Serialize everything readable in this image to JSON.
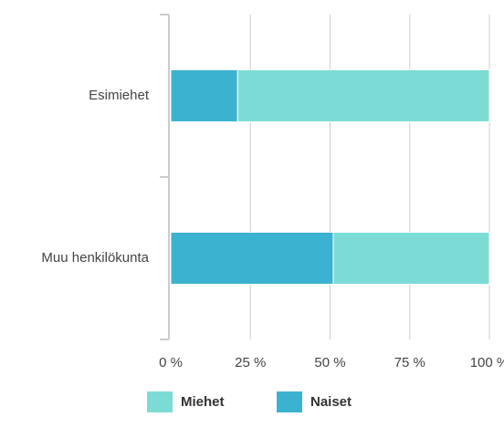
{
  "chart_data": {
    "type": "bar",
    "orientation": "horizontal",
    "stacked": true,
    "categories": [
      "Esimiehet",
      "Muu henkilökunta"
    ],
    "series": [
      {
        "name": "Miehet",
        "color": "#7ddbd5",
        "values": [
          79,
          49
        ]
      },
      {
        "name": "Naiset",
        "color": "#3bb3d0",
        "values": [
          21,
          51
        ]
      }
    ],
    "xlim": [
      0,
      100
    ],
    "xticks": [
      {
        "value": 0,
        "label": "0 %"
      },
      {
        "value": 25,
        "label": "25 %"
      },
      {
        "value": 50,
        "label": "50 %"
      },
      {
        "value": 75,
        "label": "75 %"
      },
      {
        "value": 100,
        "label": "100 %"
      }
    ],
    "grid": true,
    "legend": "bottom"
  }
}
